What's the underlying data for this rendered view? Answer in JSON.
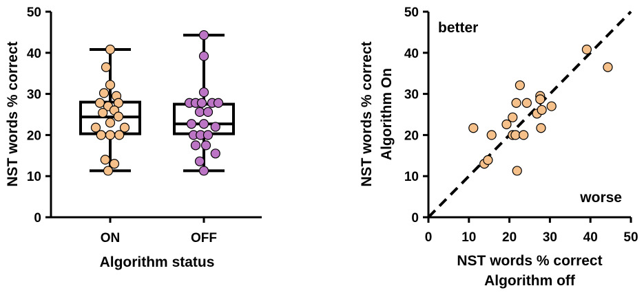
{
  "chart_data": [
    {
      "type": "box",
      "xlabel": "Algorithm status",
      "ylabel": "NST words % correct",
      "ylim": [
        0,
        50
      ],
      "yticks": [
        0,
        10,
        20,
        30,
        40,
        50
      ],
      "categories": [
        "ON",
        "OFF"
      ],
      "grid": false,
      "series": [
        {
          "category": "ON",
          "color": "#F5C08A",
          "stats": {
            "min": 11.3,
            "q1": 20.3,
            "median": 24.4,
            "q3": 28.0,
            "max": 40.8
          },
          "points": [
            {
              "x": 0.0,
              "y": 40.8
            },
            {
              "x": -0.1,
              "y": 36.5
            },
            {
              "x": 0.0,
              "y": 32.2
            },
            {
              "x": -0.15,
              "y": 30.2
            },
            {
              "x": 0.15,
              "y": 29.5
            },
            {
              "x": -0.25,
              "y": 27.8
            },
            {
              "x": 0.2,
              "y": 27.8
            },
            {
              "x": -0.05,
              "y": 27.0
            },
            {
              "x": 0.1,
              "y": 26.0
            },
            {
              "x": -0.18,
              "y": 25.4
            },
            {
              "x": 0.2,
              "y": 24.5
            },
            {
              "x": 0.0,
              "y": 23.0
            },
            {
              "x": -0.35,
              "y": 21.8
            },
            {
              "x": 0.35,
              "y": 21.8
            },
            {
              "x": -0.22,
              "y": 20.0
            },
            {
              "x": 0.0,
              "y": 20.0
            },
            {
              "x": 0.22,
              "y": 20.0
            },
            {
              "x": -0.12,
              "y": 14.0
            },
            {
              "x": 0.1,
              "y": 13.0
            },
            {
              "x": -0.05,
              "y": 11.3
            }
          ]
        },
        {
          "category": "OFF",
          "color": "#BC74C4",
          "stats": {
            "min": 11.3,
            "q1": 20.3,
            "median": 22.7,
            "q3": 27.5,
            "max": 44.3
          },
          "points": [
            {
              "x": 0.0,
              "y": 44.3
            },
            {
              "x": 0.0,
              "y": 39.2
            },
            {
              "x": 0.0,
              "y": 30.4
            },
            {
              "x": -0.35,
              "y": 27.8
            },
            {
              "x": -0.2,
              "y": 27.8
            },
            {
              "x": -0.05,
              "y": 27.8
            },
            {
              "x": 0.2,
              "y": 27.8
            },
            {
              "x": 0.35,
              "y": 27.8
            },
            {
              "x": -0.1,
              "y": 25.6
            },
            {
              "x": 0.1,
              "y": 25.6
            },
            {
              "x": -0.3,
              "y": 22.7
            },
            {
              "x": 0.0,
              "y": 22.7
            },
            {
              "x": 0.28,
              "y": 22.0
            },
            {
              "x": -0.25,
              "y": 20.0
            },
            {
              "x": -0.08,
              "y": 20.0
            },
            {
              "x": 0.1,
              "y": 20.0
            },
            {
              "x": -0.2,
              "y": 17.5
            },
            {
              "x": 0.05,
              "y": 17.5
            },
            {
              "x": 0.28,
              "y": 15.5
            },
            {
              "x": -0.1,
              "y": 13.6
            },
            {
              "x": 0.0,
              "y": 11.3
            }
          ]
        }
      ]
    },
    {
      "type": "scatter",
      "xlabel": "NST words % correct",
      "xlabel2": "Algorithm off",
      "ylabel": "NST words % correct",
      "ylabel2": "Algorithm On",
      "xlim": [
        0,
        50
      ],
      "ylim": [
        0,
        50
      ],
      "xticks": [
        0,
        10,
        20,
        30,
        40,
        50
      ],
      "yticks": [
        0,
        10,
        20,
        30,
        40,
        50
      ],
      "grid": false,
      "reference_line": {
        "style": "dashed",
        "from": [
          0,
          0
        ],
        "to": [
          50,
          50
        ]
      },
      "annotations": [
        {
          "text": "better",
          "position": "top-left"
        },
        {
          "text": "worse",
          "position": "bottom-right"
        }
      ],
      "color": "#F5C08A",
      "points": [
        {
          "x": 11.1,
          "y": 21.7
        },
        {
          "x": 13.8,
          "y": 13.0
        },
        {
          "x": 14.7,
          "y": 13.9
        },
        {
          "x": 15.6,
          "y": 20.0
        },
        {
          "x": 19.3,
          "y": 22.6
        },
        {
          "x": 20.8,
          "y": 24.3
        },
        {
          "x": 20.8,
          "y": 20.0
        },
        {
          "x": 21.5,
          "y": 20.0
        },
        {
          "x": 21.7,
          "y": 27.8
        },
        {
          "x": 21.9,
          "y": 11.3
        },
        {
          "x": 22.6,
          "y": 32.1
        },
        {
          "x": 23.5,
          "y": 20.0
        },
        {
          "x": 24.3,
          "y": 27.8
        },
        {
          "x": 26.8,
          "y": 25.2
        },
        {
          "x": 27.6,
          "y": 29.5
        },
        {
          "x": 27.6,
          "y": 28.7
        },
        {
          "x": 27.8,
          "y": 21.7
        },
        {
          "x": 28.0,
          "y": 26.1
        },
        {
          "x": 30.4,
          "y": 27.0
        },
        {
          "x": 39.1,
          "y": 40.8
        },
        {
          "x": 44.3,
          "y": 36.5
        }
      ]
    }
  ]
}
